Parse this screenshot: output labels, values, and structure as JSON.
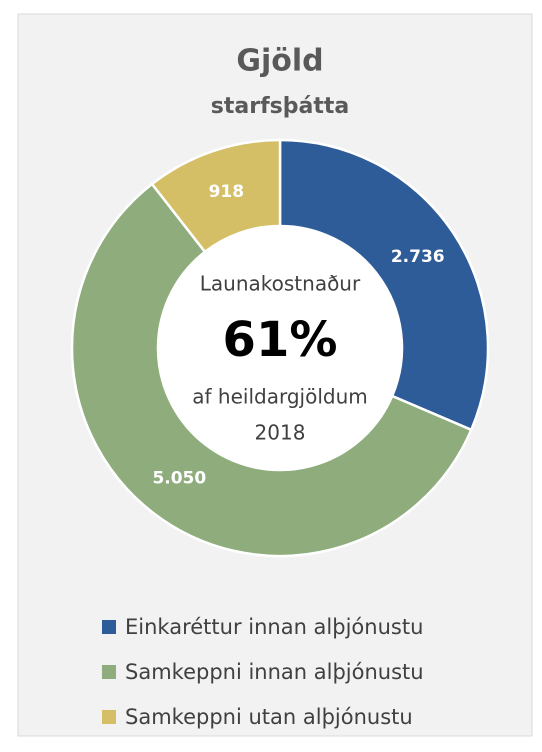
{
  "chart_data": {
    "type": "donut",
    "title": "Gjöld",
    "subtitle": "starfsþátta",
    "annotations": [
      "Launakostnaður",
      "61%",
      "af heildargjöldum",
      "2018"
    ],
    "series": [
      {
        "name": "Einkaréttur innan alþjónustu",
        "color": "#2e5c99",
        "values": [
          2736
        ],
        "value_labels": [
          "2.736"
        ]
      },
      {
        "name": "Samkeppni innan alþjónustu",
        "color": "#8fad7c",
        "values": [
          5050
        ],
        "value_labels": [
          "5.050"
        ]
      },
      {
        "name": "Samkeppni utan alþjónustu",
        "color": "#d4bf66",
        "values": [
          918
        ],
        "value_labels": [
          "918"
        ]
      }
    ],
    "legend": "bottom"
  }
}
